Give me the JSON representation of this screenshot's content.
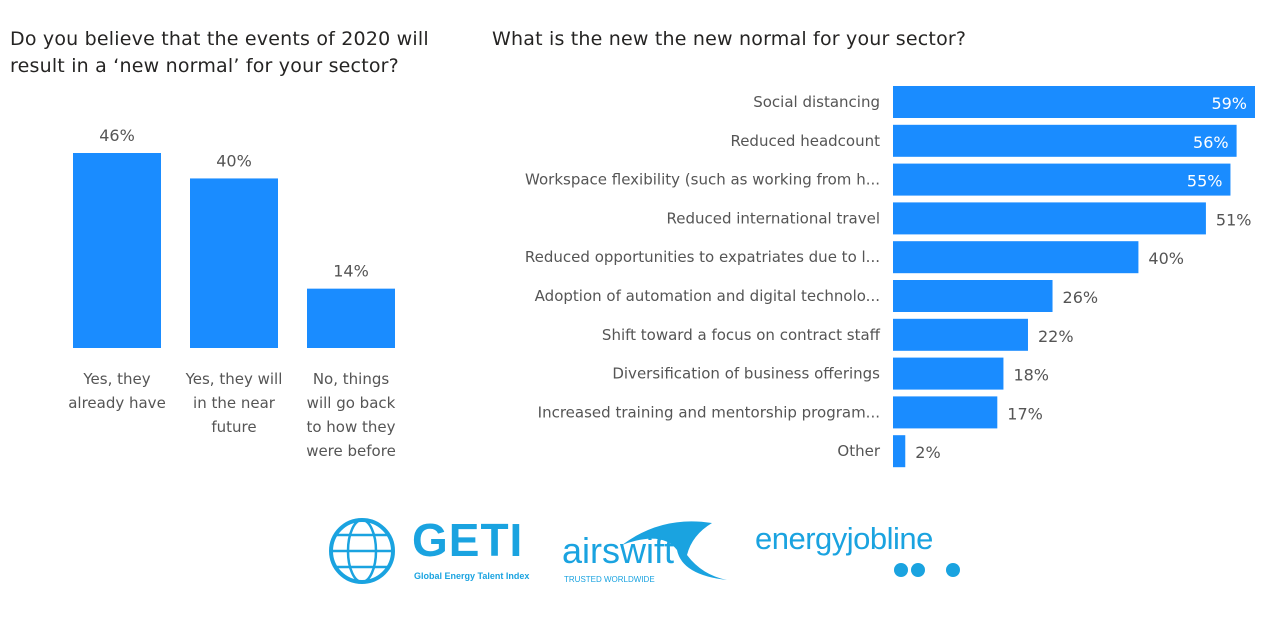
{
  "chart_data": [
    {
      "type": "bar",
      "title": "Do you believe that the events of 2020 will result in a ‘new normal’ for your sector?",
      "categories": [
        "Yes, they already have",
        "Yes, they will in the near future",
        "No, things will go back to how they were before"
      ],
      "category_lines": [
        [
          "Yes, they",
          "already have"
        ],
        [
          "Yes, they will",
          "in the near",
          "future"
        ],
        [
          "No, things",
          "will go back",
          "to how they",
          "were before"
        ]
      ],
      "values": [
        46,
        40,
        14
      ],
      "data_labels": [
        "46%",
        "40%",
        "14%"
      ],
      "ylim": [
        0,
        46
      ],
      "grid": false,
      "color": "#1a8cff"
    },
    {
      "type": "bar",
      "orientation": "horizontal",
      "title": "What is the new the new normal for your sector?",
      "categories": [
        "Social distancing",
        "Reduced headcount",
        "Workspace flexibility (such as working from h...",
        "Reduced international travel",
        "Reduced opportunities to expatriates due to l...",
        "Adoption of automation and digital technolo...",
        "Shift toward a focus on contract staff",
        "Diversification of business offerings",
        "Increased training and mentorship program...",
        "Other"
      ],
      "values": [
        59,
        56,
        55,
        51,
        40,
        26,
        22,
        18,
        17,
        2
      ],
      "data_labels": [
        "59%",
        "56%",
        "55%",
        "51%",
        "40%",
        "26%",
        "22%",
        "18%",
        "17%",
        "2%"
      ],
      "xlim": [
        0,
        59
      ],
      "grid": false,
      "color": "#1a8cff"
    }
  ],
  "logos": {
    "geti": {
      "name": "GETI",
      "tagline": "Global Energy Talent Index"
    },
    "airswift": {
      "name": "airswift",
      "tagline": "TRUSTED WORLDWIDE"
    },
    "energyjobline": {
      "name": "energyjobline"
    }
  }
}
